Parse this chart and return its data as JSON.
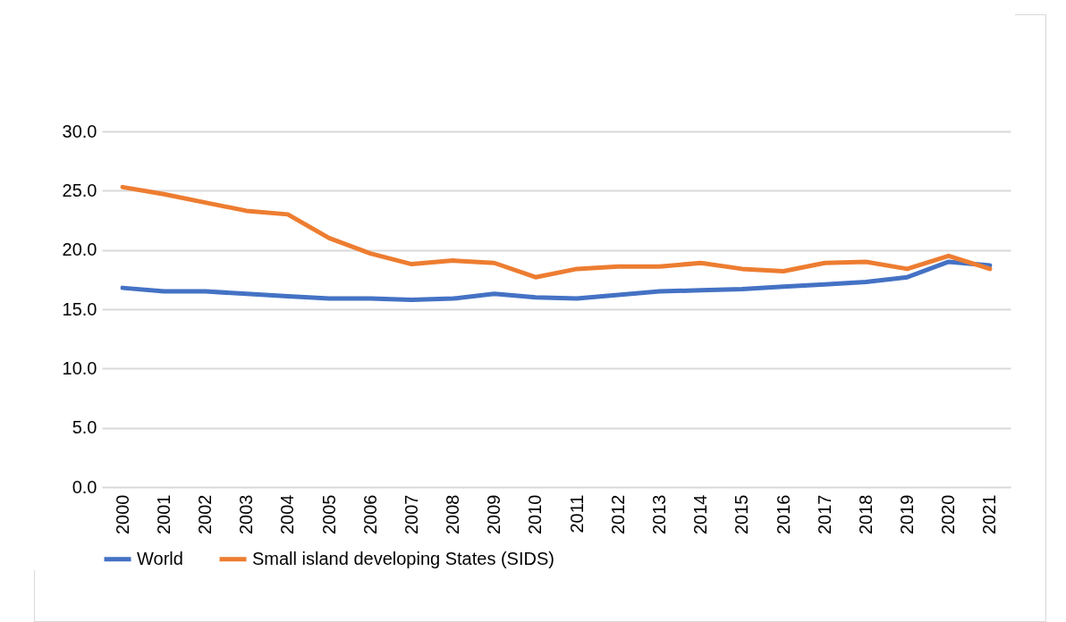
{
  "chart_data": {
    "type": "line",
    "categories": [
      "2000",
      "2001",
      "2002",
      "2003",
      "2004",
      "2005",
      "2006",
      "2007",
      "2008",
      "2009",
      "2010",
      "2011",
      "2012",
      "2013",
      "2014",
      "2015",
      "2016",
      "2017",
      "2018",
      "2019",
      "2020",
      "2021"
    ],
    "series": [
      {
        "name": "World",
        "color": "#4472c4",
        "values": [
          16.8,
          16.5,
          16.5,
          16.3,
          16.1,
          15.9,
          15.9,
          15.8,
          15.9,
          16.3,
          16.0,
          15.9,
          16.2,
          16.5,
          16.6,
          16.7,
          16.9,
          17.1,
          17.3,
          17.7,
          19.0,
          18.7
        ]
      },
      {
        "name": "Small island developing States (SIDS)",
        "color": "#ed7d31",
        "values": [
          25.3,
          24.7,
          24.0,
          23.3,
          23.0,
          21.0,
          19.7,
          18.8,
          19.1,
          18.9,
          17.7,
          18.4,
          18.6,
          18.6,
          18.9,
          18.4,
          18.2,
          18.9,
          19.0,
          18.4,
          19.5,
          18.4
        ]
      }
    ],
    "ylim": [
      0,
      30
    ],
    "yticks": [
      {
        "value": 0,
        "label": "0.0"
      },
      {
        "value": 5,
        "label": "5.0"
      },
      {
        "value": 10,
        "label": "10.0"
      },
      {
        "value": 15,
        "label": "15.0"
      },
      {
        "value": 20,
        "label": "20.0"
      },
      {
        "value": 25,
        "label": "25.0"
      },
      {
        "value": 30,
        "label": "30.0"
      }
    ],
    "grid": "y",
    "legend": "bottom",
    "line_style": "solid",
    "marker": "none"
  }
}
